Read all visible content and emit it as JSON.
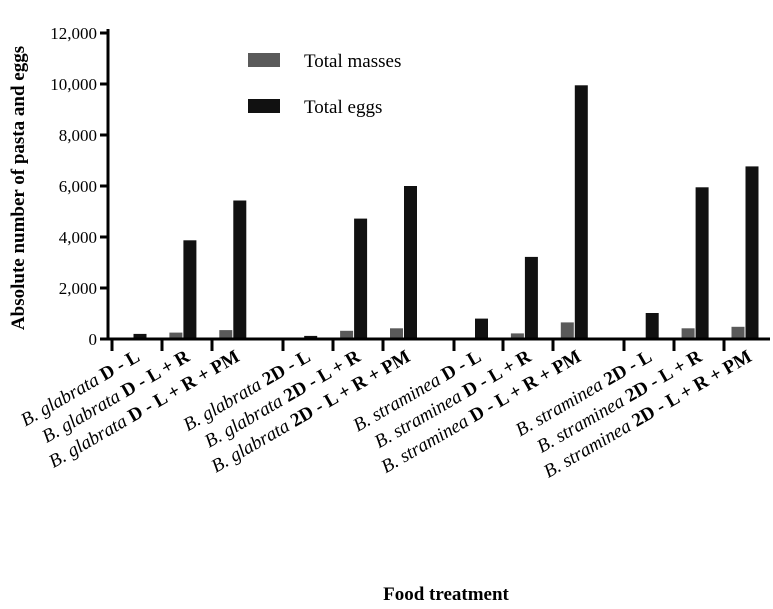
{
  "chart_data": {
    "type": "bar",
    "xlabel": "Food treatment",
    "ylabel": "Absolute number of pasta and eggs",
    "ylim": [
      0,
      12000
    ],
    "yticks": [
      0,
      2000,
      4000,
      6000,
      8000,
      10000,
      12000
    ],
    "ytick_labels": [
      "0",
      "2,000",
      "4,000",
      "6,000",
      "8,000",
      "10,000",
      "12,000"
    ],
    "grid": false,
    "legend_position": "top-center",
    "categories": [
      "B. glabrata D - L",
      "B. glabrata D - L + R",
      "B. glabrata D - L + R + PM",
      "B. glabrata 2D - L",
      "B. glabrata 2D - L + R",
      "B. glabrata 2D - L + R + PM",
      "B. straminea D - L",
      "B. straminea D - L + R",
      "B. straminea D - L + R + PM",
      "B. straminea 2D - L",
      "B. straminea 2D - L + R",
      "B. straminea 2D - L + R + PM"
    ],
    "category_parts": [
      {
        "species": "B. glabrata",
        "treatment": "D - L"
      },
      {
        "species": "B. glabrata",
        "treatment": "D - L + R"
      },
      {
        "species": "B. glabrata",
        "treatment": "D - L + R + PM"
      },
      {
        "species": "B. glabrata",
        "treatment": "2D - L"
      },
      {
        "species": "B. glabrata",
        "treatment": "2D - L + R"
      },
      {
        "species": "B. glabrata",
        "treatment": "2D - L + R + PM"
      },
      {
        "species": "B. straminea",
        "treatment": "D - L"
      },
      {
        "species": "B. straminea",
        "treatment": "D - L + R"
      },
      {
        "species": "B. straminea",
        "treatment": "D - L + R + PM"
      },
      {
        "species": "B. straminea",
        "treatment": "2D - L"
      },
      {
        "species": "B. straminea",
        "treatment": "2D - L + R"
      },
      {
        "species": "B. straminea",
        "treatment": "2D - L + R + PM"
      }
    ],
    "series": [
      {
        "name": "Total masses",
        "color": "#5a5a5a",
        "values": [
          10,
          250,
          350,
          5,
          320,
          420,
          10,
          220,
          650,
          10,
          420,
          480
        ]
      },
      {
        "name": "Total eggs",
        "color": "#111111",
        "values": [
          200,
          3870,
          5430,
          120,
          4720,
          6000,
          800,
          3220,
          9950,
          1020,
          5950,
          6770
        ]
      }
    ]
  }
}
